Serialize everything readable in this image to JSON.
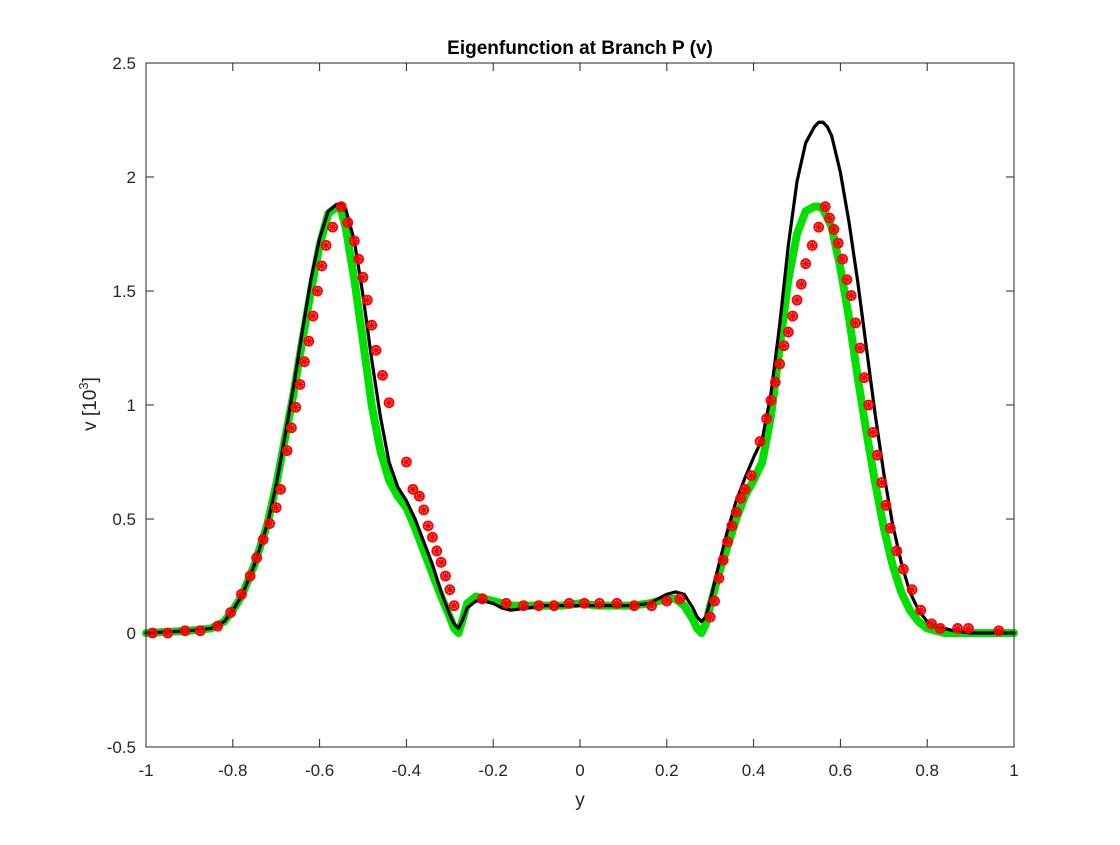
{
  "chart_data": {
    "type": "line",
    "title": "Eigenfunction at Branch P (v)",
    "xlabel": "y",
    "ylabel": {
      "prefix": "v [10",
      "exponent": "3",
      "suffix": "]"
    },
    "xlim": [
      -1,
      1
    ],
    "ylim": [
      -0.5,
      2.5
    ],
    "xticks": [
      "-1",
      "-0.8",
      "-0.6",
      "-0.4",
      "-0.2",
      "0",
      "0.2",
      "0.4",
      "0.6",
      "0.8",
      "1"
    ],
    "yticks": [
      "-0.5",
      "0",
      "0.5",
      "1",
      "1.5",
      "2",
      "2.5"
    ],
    "grid": false,
    "legend": "none",
    "series": [
      {
        "style": "thick-line",
        "color": "#00e000",
        "x": [
          -1.0,
          -0.9,
          -0.85,
          -0.82,
          -0.8,
          -0.78,
          -0.75,
          -0.72,
          -0.7,
          -0.68,
          -0.66,
          -0.64,
          -0.62,
          -0.6,
          -0.58,
          -0.56,
          -0.55,
          -0.54,
          -0.52,
          -0.5,
          -0.48,
          -0.46,
          -0.44,
          -0.42,
          -0.4,
          -0.38,
          -0.36,
          -0.34,
          -0.32,
          -0.3,
          -0.29,
          -0.28,
          -0.27,
          -0.26,
          -0.24,
          -0.22,
          -0.2,
          -0.18,
          -0.16,
          -0.12,
          -0.08,
          -0.04,
          0.0,
          0.04,
          0.08,
          0.12,
          0.16,
          0.18,
          0.2,
          0.22,
          0.24,
          0.26,
          0.27,
          0.28,
          0.29,
          0.3,
          0.32,
          0.34,
          0.36,
          0.38,
          0.4,
          0.42,
          0.44,
          0.46,
          0.48,
          0.5,
          0.52,
          0.54,
          0.55,
          0.56,
          0.58,
          0.6,
          0.62,
          0.64,
          0.66,
          0.68,
          0.7,
          0.72,
          0.74,
          0.76,
          0.78,
          0.8,
          0.82,
          0.84,
          0.86,
          0.9,
          0.95,
          1.0
        ],
        "y": [
          0.0,
          0.01,
          0.02,
          0.05,
          0.1,
          0.16,
          0.3,
          0.48,
          0.65,
          0.85,
          1.05,
          1.28,
          1.5,
          1.7,
          1.84,
          1.87,
          1.85,
          1.78,
          1.55,
          1.28,
          1.0,
          0.8,
          0.67,
          0.6,
          0.55,
          0.46,
          0.36,
          0.26,
          0.16,
          0.07,
          0.02,
          0.0,
          0.06,
          0.13,
          0.16,
          0.15,
          0.14,
          0.13,
          0.12,
          0.12,
          0.12,
          0.12,
          0.13,
          0.12,
          0.12,
          0.12,
          0.13,
          0.14,
          0.15,
          0.15,
          0.12,
          0.06,
          0.02,
          0.0,
          0.04,
          0.12,
          0.26,
          0.38,
          0.5,
          0.6,
          0.67,
          0.75,
          0.95,
          1.25,
          1.55,
          1.75,
          1.85,
          1.87,
          1.87,
          1.86,
          1.78,
          1.6,
          1.38,
          1.12,
          0.88,
          0.66,
          0.46,
          0.3,
          0.18,
          0.1,
          0.05,
          0.02,
          0.01,
          0.0,
          0.0,
          0.0,
          0.0,
          0.0
        ]
      },
      {
        "style": "line",
        "color": "#000000",
        "x": [
          -1.0,
          -0.9,
          -0.85,
          -0.82,
          -0.8,
          -0.78,
          -0.75,
          -0.72,
          -0.7,
          -0.68,
          -0.66,
          -0.64,
          -0.62,
          -0.6,
          -0.58,
          -0.56,
          -0.55,
          -0.54,
          -0.52,
          -0.5,
          -0.48,
          -0.46,
          -0.44,
          -0.42,
          -0.4,
          -0.38,
          -0.36,
          -0.34,
          -0.32,
          -0.3,
          -0.29,
          -0.28,
          -0.27,
          -0.26,
          -0.24,
          -0.22,
          -0.2,
          -0.18,
          -0.16,
          -0.12,
          -0.08,
          -0.04,
          0.0,
          0.04,
          0.08,
          0.12,
          0.16,
          0.18,
          0.2,
          0.22,
          0.24,
          0.26,
          0.27,
          0.28,
          0.29,
          0.3,
          0.32,
          0.34,
          0.36,
          0.38,
          0.4,
          0.42,
          0.44,
          0.46,
          0.48,
          0.5,
          0.52,
          0.54,
          0.55,
          0.56,
          0.57,
          0.58,
          0.6,
          0.62,
          0.64,
          0.66,
          0.68,
          0.7,
          0.72,
          0.74,
          0.76,
          0.78,
          0.8,
          0.82,
          0.84,
          0.86,
          0.9,
          0.95,
          1.0
        ],
        "y": [
          0.0,
          0.01,
          0.02,
          0.05,
          0.1,
          0.16,
          0.3,
          0.48,
          0.65,
          0.86,
          1.08,
          1.32,
          1.55,
          1.73,
          1.85,
          1.88,
          1.88,
          1.86,
          1.72,
          1.48,
          1.2,
          0.95,
          0.75,
          0.64,
          0.58,
          0.5,
          0.4,
          0.3,
          0.18,
          0.08,
          0.04,
          0.02,
          0.06,
          0.11,
          0.14,
          0.14,
          0.13,
          0.11,
          0.1,
          0.11,
          0.12,
          0.12,
          0.12,
          0.12,
          0.12,
          0.12,
          0.13,
          0.15,
          0.17,
          0.18,
          0.17,
          0.11,
          0.07,
          0.05,
          0.07,
          0.14,
          0.3,
          0.45,
          0.58,
          0.68,
          0.77,
          0.85,
          1.05,
          1.35,
          1.7,
          1.98,
          2.15,
          2.22,
          2.24,
          2.24,
          2.22,
          2.18,
          2.02,
          1.8,
          1.54,
          1.25,
          0.96,
          0.7,
          0.48,
          0.31,
          0.18,
          0.1,
          0.05,
          0.03,
          0.02,
          0.01,
          0.0,
          0.0,
          0.0
        ]
      },
      {
        "style": "markers",
        "color": "#ff0000",
        "x": [
          -0.985,
          -0.95,
          -0.91,
          -0.875,
          -0.835,
          -0.805,
          -0.78,
          -0.76,
          -0.745,
          -0.73,
          -0.715,
          -0.7,
          -0.69,
          -0.675,
          -0.665,
          -0.655,
          -0.645,
          -0.635,
          -0.625,
          -0.615,
          -0.605,
          -0.595,
          -0.585,
          -0.57,
          -0.55,
          -0.535,
          -0.52,
          -0.51,
          -0.5,
          -0.49,
          -0.48,
          -0.47,
          -0.455,
          -0.44,
          -0.4,
          -0.385,
          -0.37,
          -0.36,
          -0.35,
          -0.34,
          -0.33,
          -0.32,
          -0.31,
          -0.3,
          -0.29,
          -0.225,
          -0.17,
          -0.13,
          -0.095,
          -0.06,
          -0.025,
          0.01,
          0.045,
          0.085,
          0.125,
          0.165,
          0.2,
          0.23,
          0.3,
          0.31,
          0.32,
          0.33,
          0.34,
          0.35,
          0.36,
          0.37,
          0.38,
          0.395,
          0.415,
          0.43,
          0.44,
          0.45,
          0.46,
          0.47,
          0.48,
          0.49,
          0.5,
          0.51,
          0.52,
          0.535,
          0.55,
          0.565,
          0.575,
          0.585,
          0.595,
          0.605,
          0.615,
          0.625,
          0.635,
          0.645,
          0.655,
          0.665,
          0.675,
          0.685,
          0.695,
          0.705,
          0.715,
          0.73,
          0.745,
          0.765,
          0.785,
          0.81,
          0.83,
          0.87,
          0.895,
          0.965
        ],
        "y": [
          0.0,
          0.0,
          0.01,
          0.01,
          0.03,
          0.09,
          0.17,
          0.25,
          0.33,
          0.41,
          0.48,
          0.55,
          0.63,
          0.8,
          0.9,
          0.99,
          1.09,
          1.19,
          1.28,
          1.39,
          1.5,
          1.61,
          1.7,
          1.78,
          1.87,
          1.8,
          1.72,
          1.64,
          1.56,
          1.46,
          1.35,
          1.24,
          1.13,
          1.01,
          0.75,
          0.63,
          0.6,
          0.54,
          0.47,
          0.42,
          0.36,
          0.31,
          0.25,
          0.19,
          0.12,
          0.15,
          0.13,
          0.12,
          0.12,
          0.12,
          0.13,
          0.13,
          0.13,
          0.13,
          0.12,
          0.12,
          0.14,
          0.15,
          0.07,
          0.14,
          0.24,
          0.32,
          0.4,
          0.47,
          0.53,
          0.59,
          0.63,
          0.69,
          0.84,
          0.94,
          1.02,
          1.1,
          1.18,
          1.26,
          1.32,
          1.39,
          1.46,
          1.53,
          1.62,
          1.7,
          1.78,
          1.87,
          1.82,
          1.77,
          1.71,
          1.64,
          1.55,
          1.48,
          1.36,
          1.25,
          1.12,
          1.0,
          0.88,
          0.78,
          0.66,
          0.56,
          0.46,
          0.36,
          0.28,
          0.19,
          0.1,
          0.04,
          0.02,
          0.02,
          0.02,
          0.01
        ]
      }
    ]
  }
}
